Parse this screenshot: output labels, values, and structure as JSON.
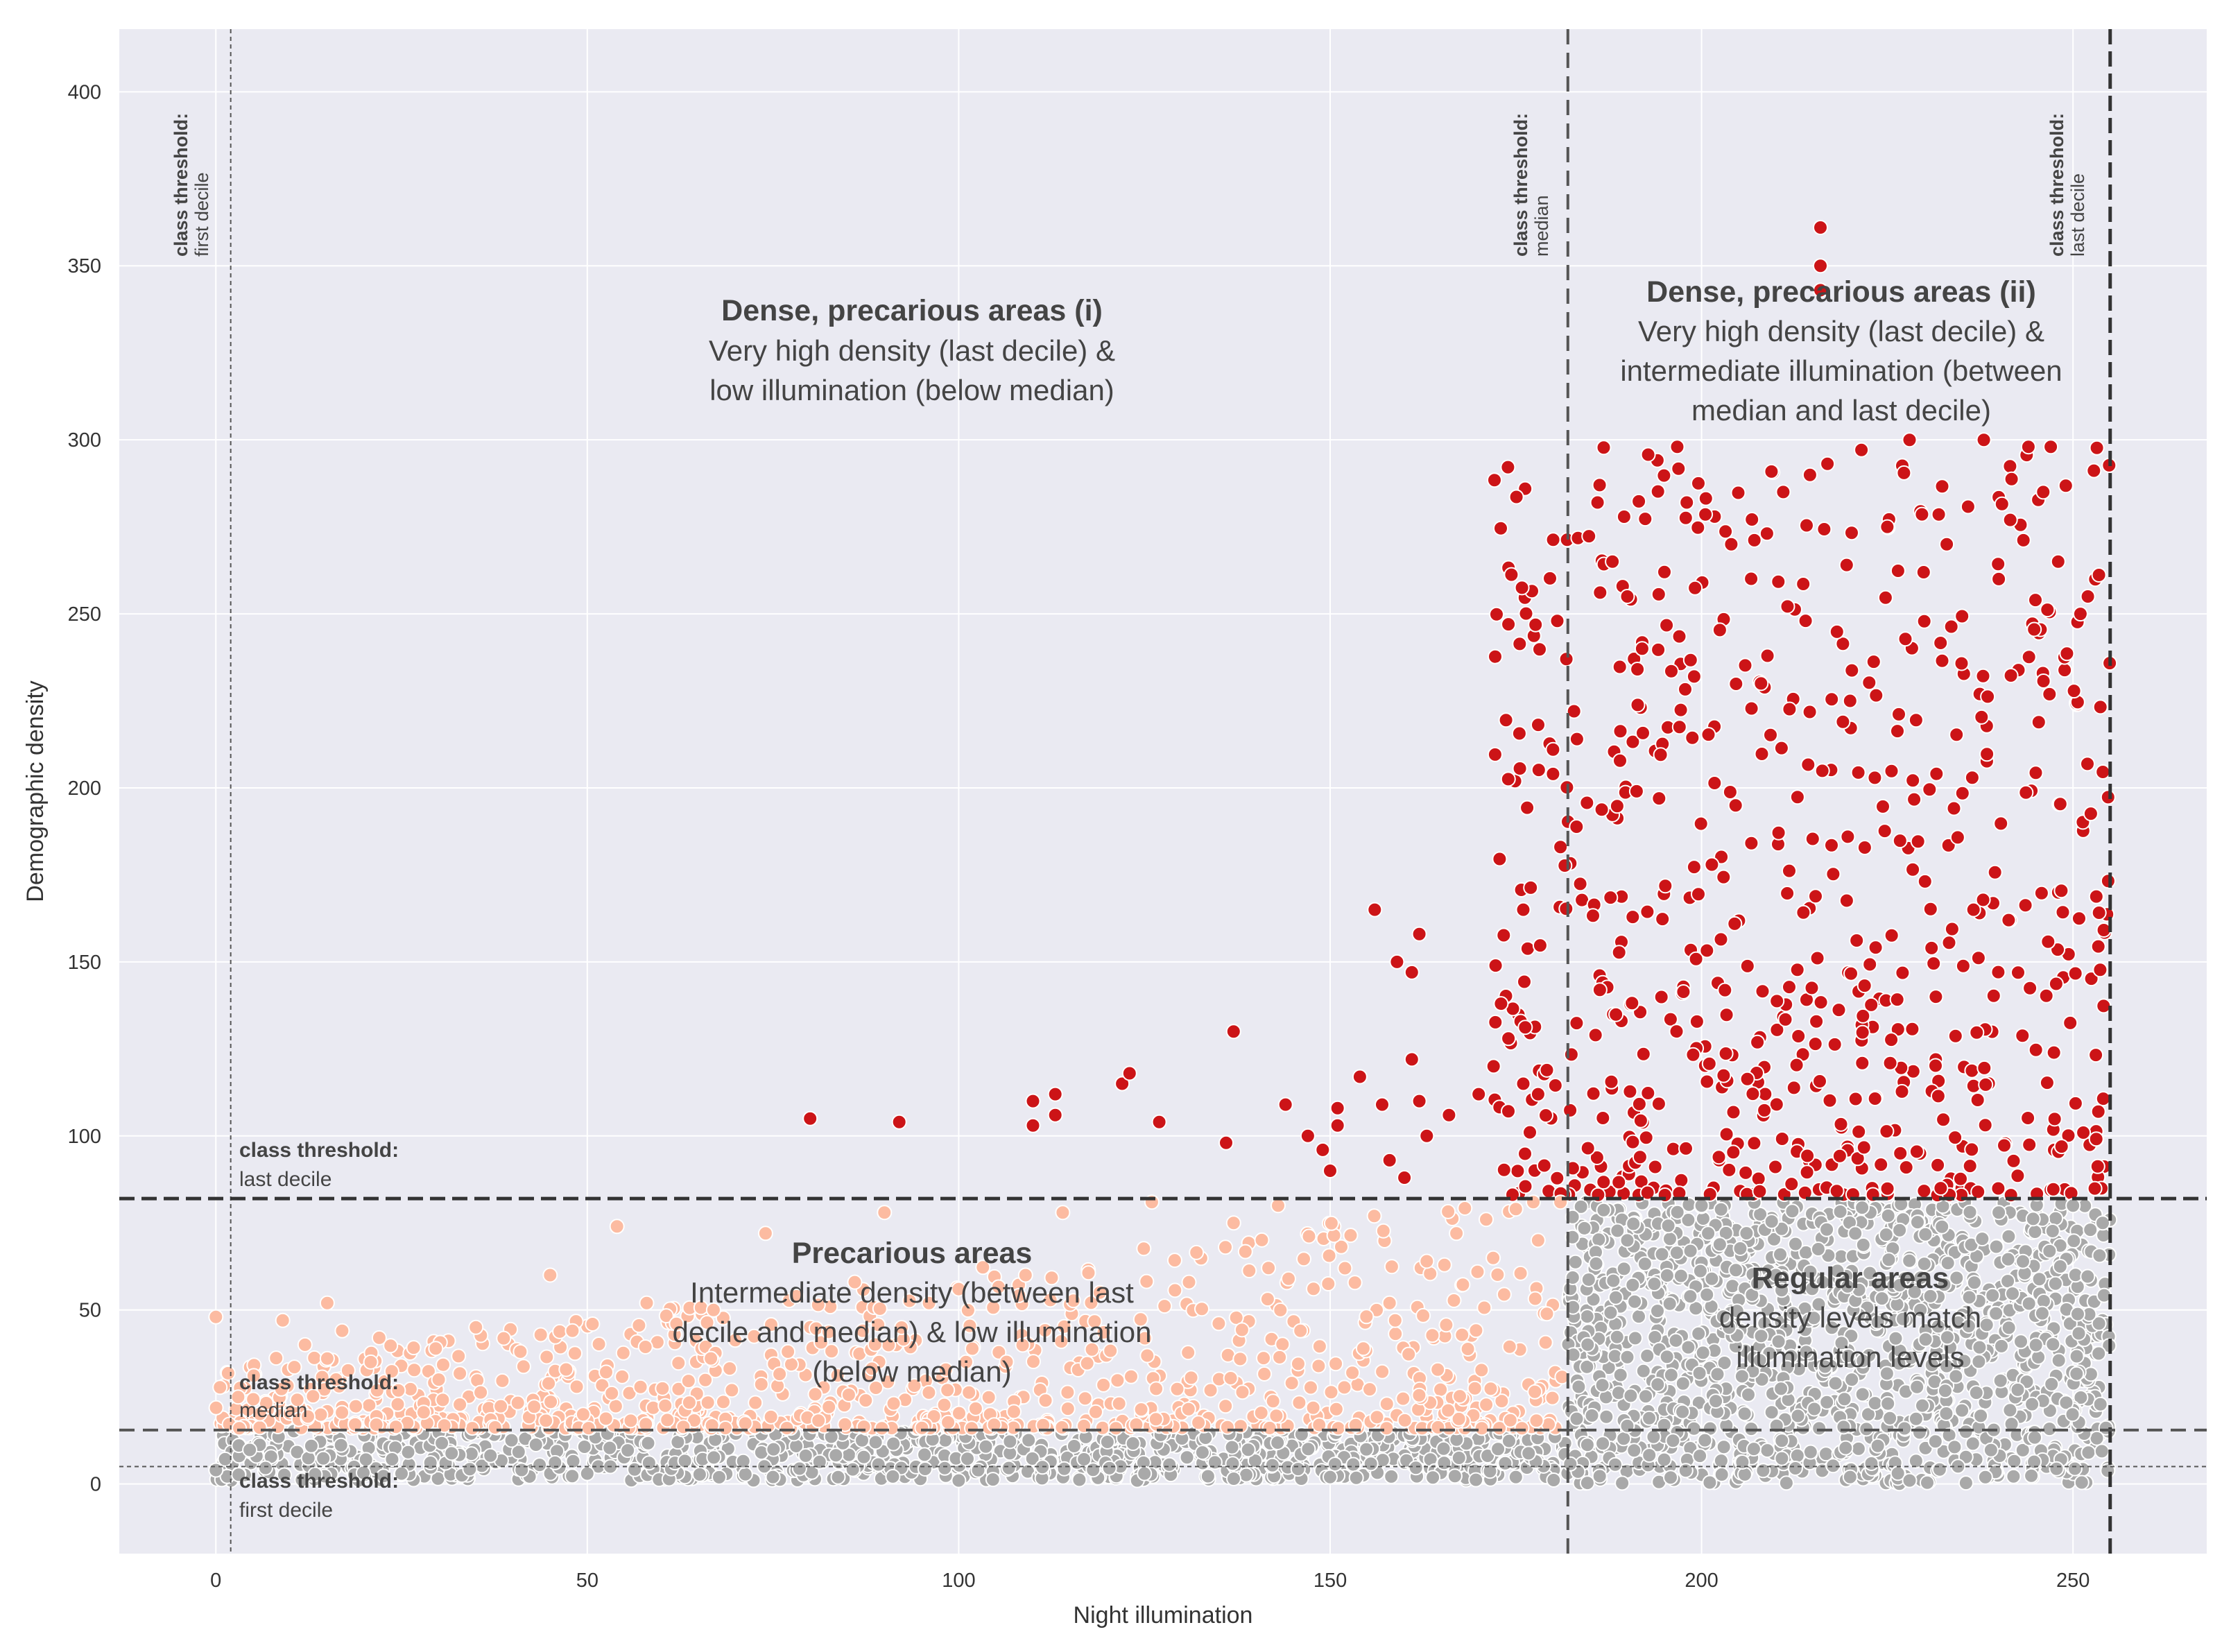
{
  "chart_data": {
    "type": "scatter",
    "xlabel": "Night illumination",
    "ylabel": "Demographic density",
    "xlim": [
      -13,
      268
    ],
    "ylim": [
      -20,
      418
    ],
    "x_ticks": [
      0,
      50,
      100,
      150,
      200,
      250
    ],
    "y_ticks": [
      0,
      50,
      100,
      150,
      200,
      250,
      300,
      350,
      400
    ],
    "grid": true,
    "colors": {
      "background": "#eaeaf2",
      "grid": "#ffffff",
      "dense": "#cc1417",
      "precarious": "#fcbba1",
      "regular": "#a9a9a9",
      "threshold": "#555555",
      "text": "#444444"
    },
    "thresholds": {
      "illumination": {
        "first_decile": 2,
        "median": 182,
        "last_decile": 255
      },
      "density": {
        "first_decile": 5,
        "median": 15.5,
        "last_decile": 82
      }
    },
    "vertical_threshold_labels": [
      {
        "bold": "class threshold:",
        "normal": "first decile"
      },
      {
        "bold": "class threshold:",
        "normal": "median"
      },
      {
        "bold": "class threshold:",
        "normal": "last decile"
      }
    ],
    "horizontal_threshold_labels": [
      {
        "bold": "class threshold:",
        "normal": "last decile"
      },
      {
        "bold": "class threshold:",
        "normal": "median"
      },
      {
        "bold": "class threshold:",
        "normal": "first decile"
      }
    ],
    "regions": [
      {
        "title": "Dense, precarious areas (i)",
        "lines": [
          "Very high density (last decile) &",
          "low illumination (below median)"
        ]
      },
      {
        "title": "Dense, precarious areas (ii)",
        "lines": [
          "Very high density (last decile) &",
          "intermediate illumination (between",
          "median and last decile)"
        ]
      },
      {
        "title": "Precarious areas",
        "lines": [
          "Intermediate density (between last",
          "decile and median) & low illumination",
          "(below median)"
        ]
      },
      {
        "title": "Regular areas",
        "lines": [
          "density levels match",
          "illumination levels"
        ]
      }
    ],
    "series": [
      {
        "name": "Dense, precarious areas",
        "color_key": "dense",
        "x": [
          80,
          92,
          110,
          110,
          113,
          113,
          122,
          123,
          127,
          136,
          137,
          144,
          147,
          149,
          150,
          151,
          151,
          154,
          156,
          157,
          158,
          159,
          160,
          161,
          161,
          162,
          162,
          163,
          166,
          170,
          172,
          173,
          174,
          174,
          176,
          176,
          178,
          180,
          180,
          181,
          216,
          216,
          216,
          247,
          252,
          186,
          188,
          190,
          192,
          195,
          198,
          199,
          204,
          208,
          211,
          214,
          220,
          225,
          228,
          233,
          238,
          240,
          244,
          246,
          248,
          251
        ],
        "y": [
          105,
          104,
          103,
          110,
          106,
          112,
          115,
          118,
          104,
          98,
          130,
          109,
          100,
          96,
          90,
          108,
          103,
          117,
          165,
          109,
          93,
          150,
          88,
          147,
          122,
          158,
          110,
          100,
          106,
          112,
          120,
          138,
          247,
          128,
          165,
          115,
          112,
          211,
          204,
          183,
          350,
          361,
          343,
          298,
          255,
          282,
          265,
          255,
          240,
          262,
          282,
          232,
          270,
          230,
          285,
          248,
          225,
          275,
          300,
          270,
          300,
          260,
          298,
          285,
          265,
          250
        ]
      },
      {
        "name": "Precarious areas",
        "color_key": "precarious",
        "x": [
          0,
          3,
          9,
          12,
          15,
          17,
          22,
          30,
          35,
          41,
          45,
          48,
          54,
          58,
          62,
          67,
          74,
          77,
          86,
          90,
          96,
          100,
          109,
          114,
          119,
          126,
          131,
          137,
          143,
          146,
          152,
          158,
          163,
          167,
          171,
          175,
          178,
          181
        ],
        "y": [
          48,
          25,
          47,
          40,
          52,
          44,
          42,
          30,
          45,
          38,
          60,
          44,
          74,
          52,
          46,
          50,
          72,
          38,
          58,
          78,
          52,
          56,
          60,
          78,
          55,
          81,
          58,
          75,
          80,
          44,
          62,
          52,
          64,
          72,
          76,
          79,
          70,
          81
        ]
      },
      {
        "name": "Regular areas",
        "color_key": "regular",
        "x": [
          0,
          25,
          50,
          75,
          100,
          125,
          150,
          175,
          190,
          200,
          210,
          220,
          228,
          240,
          250,
          254
        ],
        "y": [
          4,
          3,
          3,
          2,
          1,
          3,
          2,
          2,
          70,
          80,
          60,
          2,
          1,
          78,
          80,
          75
        ]
      }
    ]
  }
}
